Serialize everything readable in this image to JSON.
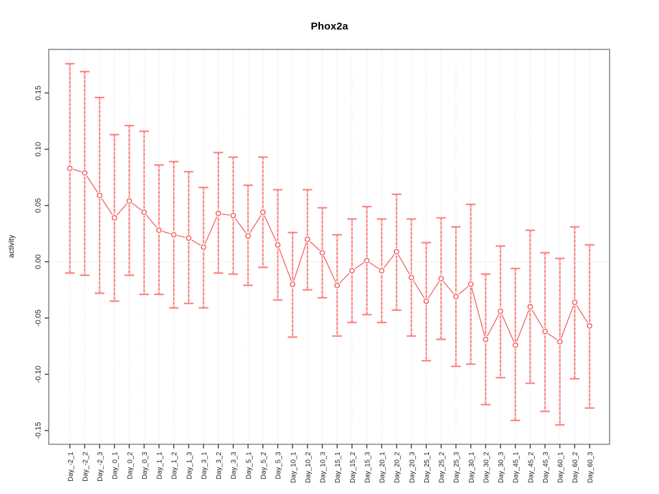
{
  "figure": {
    "title": "Phox2a",
    "y_axis_title": "activity"
  },
  "chart_data": {
    "type": "scatter",
    "subtype": "points-with-error-bars",
    "title": "Phox2a",
    "xlabel": "",
    "ylabel": "activity",
    "grid": "vertical-dotted-per-category",
    "zero_reference_line": true,
    "legend": "none",
    "ylim": [
      -0.161,
      0.188
    ],
    "yticks": [
      -0.15,
      -0.1,
      -0.05,
      0.0,
      0.05,
      0.1,
      0.15
    ],
    "ytick_labels": [
      "-0.15",
      "-0.10",
      "-0.05",
      "0.00",
      "0.05",
      "0.10",
      "0.15"
    ],
    "categories": [
      "Day_-2_1",
      "Day_-2_2",
      "Day_-2_3",
      "Day_0_1",
      "Day_0_2",
      "Day_0_3",
      "Day_1_1",
      "Day_1_2",
      "Day_1_3",
      "Day_3_1",
      "Day_3_2",
      "Day_3_3",
      "Day_5_1",
      "Day_5_2",
      "Day_5_3",
      "Day_10_1",
      "Day_10_2",
      "Day_10_3",
      "Day_15_1",
      "Day_15_2",
      "Day_15_3",
      "Day_20_1",
      "Day_20_2",
      "Day_20_3",
      "Day_25_1",
      "Day_25_2",
      "Day_25_3",
      "Day_30_1",
      "Day_30_2",
      "Day_30_3",
      "Day_45_1",
      "Day_45_2",
      "Day_45_3",
      "Day_60_1",
      "Day_60_2",
      "Day_60_3"
    ],
    "series": [
      {
        "name": "activity",
        "values": [
          0.083,
          0.079,
          0.059,
          0.039,
          0.054,
          0.044,
          0.028,
          0.024,
          0.021,
          0.013,
          0.043,
          0.041,
          0.023,
          0.044,
          0.015,
          -0.02,
          0.02,
          0.008,
          -0.021,
          -0.008,
          0.001,
          -0.008,
          0.009,
          -0.014,
          -0.035,
          -0.015,
          -0.031,
          -0.02,
          -0.069,
          -0.044,
          -0.074,
          -0.04,
          -0.062,
          -0.071,
          -0.036,
          -0.057
        ],
        "ci_low": [
          -0.01,
          -0.012,
          -0.028,
          -0.035,
          -0.012,
          -0.029,
          -0.029,
          -0.041,
          -0.037,
          -0.041,
          -0.01,
          -0.011,
          -0.021,
          -0.005,
          -0.034,
          -0.067,
          -0.025,
          -0.032,
          -0.066,
          -0.054,
          -0.047,
          -0.054,
          -0.043,
          -0.066,
          -0.088,
          -0.069,
          -0.093,
          -0.091,
          -0.127,
          -0.103,
          -0.141,
          -0.108,
          -0.133,
          -0.145,
          -0.104,
          -0.13
        ],
        "ci_high": [
          0.176,
          0.169,
          0.146,
          0.113,
          0.121,
          0.116,
          0.086,
          0.089,
          0.08,
          0.066,
          0.097,
          0.093,
          0.068,
          0.093,
          0.064,
          0.026,
          0.064,
          0.048,
          0.024,
          0.038,
          0.049,
          0.038,
          0.06,
          0.038,
          0.017,
          0.039,
          0.031,
          0.051,
          -0.011,
          0.014,
          -0.006,
          0.028,
          0.008,
          0.003,
          0.031,
          0.015
        ]
      }
    ],
    "colors": {
      "point_stroke": "#f04c4c",
      "connector_line": "#f25555",
      "whisker_light": "#fcc0c0",
      "whisker_dash": "#f87474",
      "cap": "#fa8484",
      "gridline": "#d9d9d9",
      "zero_line": "#cfcfcf",
      "plot_border": "#8a8a8a",
      "tick": "#3a3a3a",
      "tick_label": "#1f1f1f",
      "background": "#ffffff"
    }
  }
}
